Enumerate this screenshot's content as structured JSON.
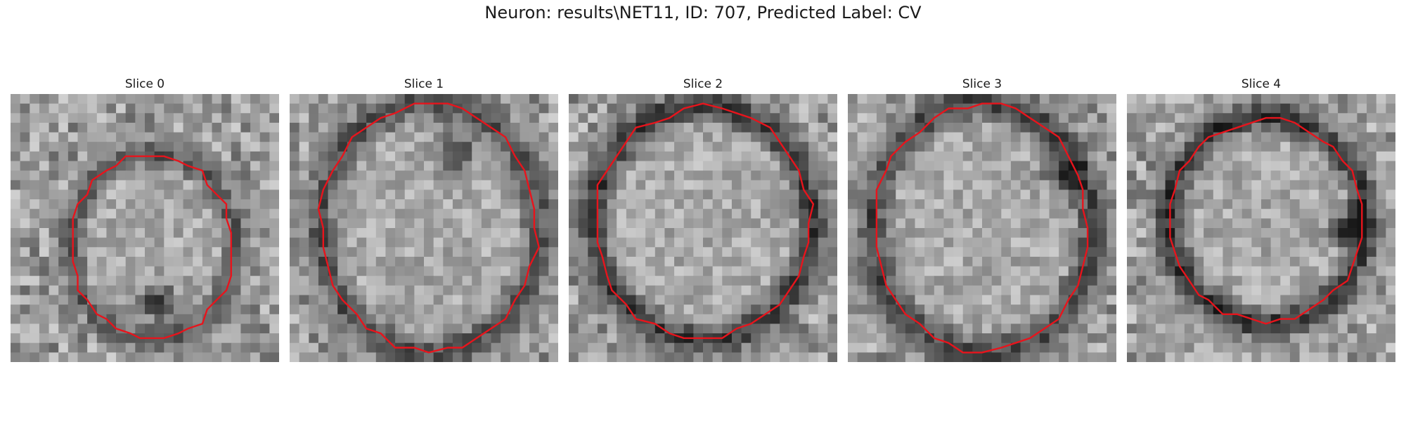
{
  "figure": {
    "title": "Neuron: results\\NET11, ID: 707, Predicted Label: CV"
  },
  "colors": {
    "contour": "#e8141c",
    "background": "#ffffff"
  },
  "slices": [
    {
      "title": "Slice 0"
    },
    {
      "title": "Slice 1"
    },
    {
      "title": "Slice 2"
    },
    {
      "title": "Slice 3"
    },
    {
      "title": "Slice 4"
    }
  ]
}
